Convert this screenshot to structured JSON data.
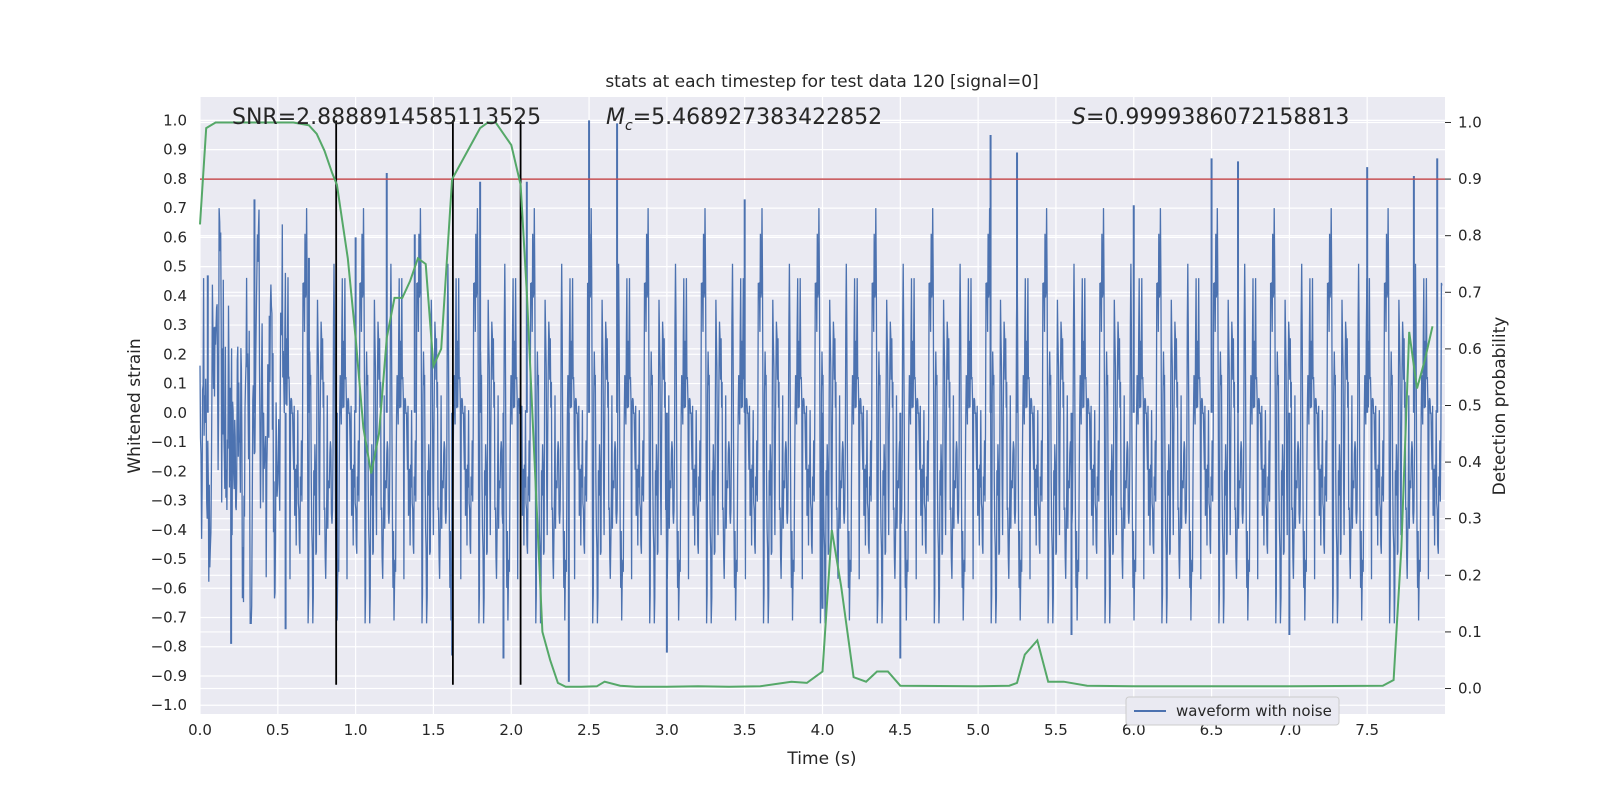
{
  "chart_data": {
    "type": "line",
    "title": "stats at each timestep for test data 120 [signal=0]",
    "xlabel": "Time (s)",
    "ylabel": "Whitened strain",
    "y2label": "Detection probability",
    "xlim": [
      0,
      8
    ],
    "ylim": [
      -1.03,
      1.08
    ],
    "y2lim": [
      -0.045,
      1.045
    ],
    "xticks": [
      0.0,
      0.5,
      1.0,
      1.5,
      2.0,
      2.5,
      3.0,
      3.5,
      4.0,
      4.5,
      5.0,
      5.5,
      6.0,
      6.5,
      7.0,
      7.5
    ],
    "xtick_labels": [
      "0.0",
      "0.5",
      "1.0",
      "1.5",
      "2.0",
      "2.5",
      "3.0",
      "3.5",
      "4.0",
      "4.5",
      "5.0",
      "5.5",
      "6.0",
      "6.5",
      "7.0",
      "7.5"
    ],
    "yticks": [
      1.0,
      0.9,
      0.8,
      0.7,
      0.6,
      0.5,
      0.4,
      0.3,
      0.2,
      0.1,
      0.0,
      -0.1,
      -0.2,
      -0.3,
      -0.4,
      -0.5,
      -0.6,
      -0.7,
      -0.8,
      -0.9,
      -1.0
    ],
    "ytick_labels": [
      "1.0",
      "0.9",
      "0.8",
      "0.7",
      "0.6",
      "0.5",
      "0.4",
      "0.3",
      "0.2",
      "0.1",
      "0.0",
      "−0.1",
      "−0.2",
      "−0.3",
      "−0.4",
      "−0.5",
      "−0.6",
      "−0.7",
      "−0.8",
      "−0.9",
      "−1.0"
    ],
    "y2ticks": [
      1.0,
      0.9,
      0.8,
      0.7,
      0.6,
      0.5,
      0.4,
      0.3,
      0.2,
      0.1,
      0.0
    ],
    "y2tick_labels": [
      "1.0",
      "0.9",
      "0.8",
      "0.7",
      "0.6",
      "0.5",
      "0.4",
      "0.3",
      "0.2",
      "0.1",
      "0.0"
    ],
    "grid": true,
    "legend_position": "lower-right",
    "stats": {
      "snr": "SNR=2.8888914585113525",
      "mc_symbol": "M",
      "mc_subscript": "c",
      "mc_value": "=5.468927383422852",
      "s_symbol": "S",
      "s_value": "=0.9999386072158813"
    },
    "threshold": {
      "y2": 0.9,
      "color": "#c44e52"
    },
    "vertical_markers": [
      {
        "x": 0.875,
        "y_range": [
          -0.93,
          1.0
        ]
      },
      {
        "x": 1.625,
        "y_range": [
          -0.93,
          1.0
        ]
      },
      {
        "x": 2.06,
        "y_range": [
          -0.93,
          1.0
        ]
      }
    ],
    "series": [
      {
        "name": "waveform with noise",
        "axis": "left",
        "color": "#4c72b0",
        "description_points": {
          "x": [
            0.05,
            0.2,
            0.35,
            0.55,
            0.7,
            0.88,
            1.0,
            1.2,
            1.38,
            1.62,
            1.8,
            1.95,
            2.1,
            2.37,
            2.5,
            2.68,
            3.0,
            3.5,
            4.0,
            4.5,
            5.08,
            5.25,
            5.6,
            6.0,
            6.5,
            6.67,
            7.0,
            7.5,
            7.8,
            7.95
          ],
          "y": [
            0.47,
            -0.79,
            0.73,
            -0.74,
            0.53,
            -0.53,
            0.6,
            0.82,
            0.61,
            -0.83,
            0.79,
            -0.84,
            0.79,
            -0.92,
            1.0,
            0.99,
            -0.82,
            0.73,
            -0.67,
            -0.84,
            0.95,
            0.89,
            -0.76,
            0.71,
            0.87,
            0.86,
            -0.76,
            0.84,
            0.81,
            0.87
          ]
        }
      },
      {
        "name": "",
        "axis": "right",
        "color": "#55a868",
        "x": [
          0.0,
          0.04,
          0.1,
          0.2,
          0.3,
          0.4,
          0.5,
          0.6,
          0.7,
          0.75,
          0.8,
          0.85,
          0.88,
          0.95,
          1.0,
          1.05,
          1.1,
          1.15,
          1.2,
          1.25,
          1.3,
          1.35,
          1.4,
          1.45,
          1.5,
          1.55,
          1.62,
          1.7,
          1.8,
          1.85,
          1.9,
          1.95,
          2.0,
          2.06,
          2.1,
          2.15,
          2.2,
          2.25,
          2.3,
          2.35,
          2.45,
          2.55,
          2.6,
          2.7,
          2.8,
          3.0,
          3.2,
          3.4,
          3.6,
          3.8,
          3.9,
          3.95,
          4.0,
          4.06,
          4.12,
          4.2,
          4.28,
          4.35,
          4.42,
          4.5,
          5.0,
          5.2,
          5.25,
          5.3,
          5.38,
          5.45,
          5.55,
          5.7,
          6.0,
          6.5,
          7.0,
          7.6,
          7.67,
          7.72,
          7.77,
          7.82,
          7.87,
          7.92
        ],
        "y": [
          0.82,
          0.99,
          1.0,
          1.0,
          1.0,
          1.0,
          1.0,
          1.0,
          0.995,
          0.98,
          0.95,
          0.91,
          0.89,
          0.76,
          0.62,
          0.46,
          0.38,
          0.45,
          0.62,
          0.69,
          0.69,
          0.72,
          0.76,
          0.75,
          0.57,
          0.6,
          0.9,
          0.94,
          0.99,
          1.0,
          1.0,
          0.98,
          0.96,
          0.89,
          0.7,
          0.4,
          0.1,
          0.05,
          0.01,
          0.003,
          0.003,
          0.004,
          0.012,
          0.005,
          0.003,
          0.003,
          0.004,
          0.003,
          0.004,
          0.012,
          0.01,
          0.02,
          0.03,
          0.28,
          0.18,
          0.02,
          0.012,
          0.03,
          0.03,
          0.005,
          0.004,
          0.005,
          0.01,
          0.06,
          0.085,
          0.012,
          0.012,
          0.005,
          0.004,
          0.004,
          0.004,
          0.005,
          0.015,
          0.25,
          0.63,
          0.53,
          0.58,
          0.64
        ]
      }
    ]
  }
}
